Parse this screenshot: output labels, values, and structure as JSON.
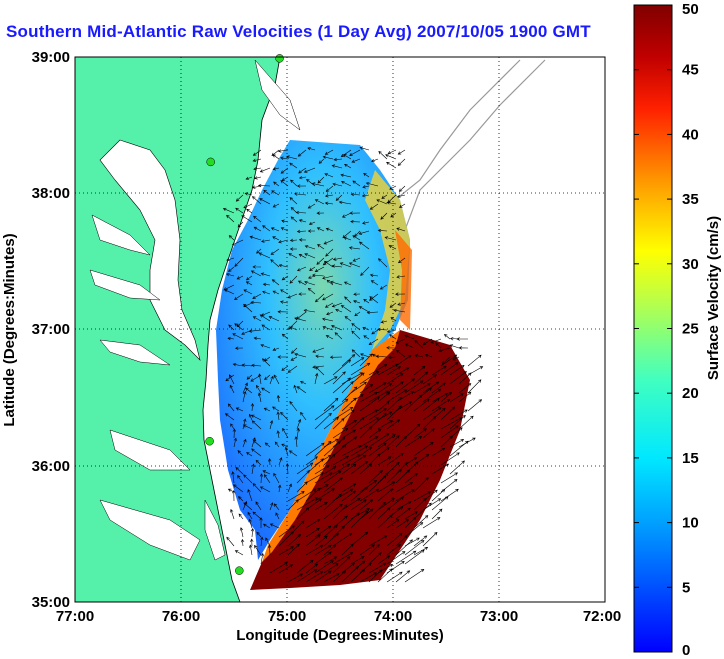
{
  "figure": {
    "title": "Southern Mid-Atlantic Raw Velocities (1 Day Avg) 2007/10/05 1900 GMT",
    "xlabel": "Longitude (Degrees:Minutes)",
    "ylabel": "Latitude (Degrees:Minutes)",
    "x_ticks": [
      "77:00",
      "76:00",
      "75:00",
      "74:00",
      "73:00",
      "72:00"
    ],
    "y_ticks": [
      "39:00",
      "38:00",
      "37:00",
      "36:00",
      "35:00"
    ]
  },
  "colorbar": {
    "label": "Surface Velocity (cm/s)",
    "ticks": [
      "50",
      "45",
      "40",
      "35",
      "30",
      "25",
      "20",
      "15",
      "10",
      "5",
      "0"
    ],
    "min": 0,
    "max": 50
  },
  "colors": {
    "land": "#55f0aa",
    "title": "#1a1aff",
    "station": "#22dd22"
  },
  "map_extent": {
    "lon": [
      -77,
      -72
    ],
    "lat": [
      35,
      39
    ]
  },
  "radar_stations": [
    {
      "lon": -75.07,
      "lat": 38.99
    },
    {
      "lon": -75.72,
      "lat": 38.23
    },
    {
      "lon": -75.73,
      "lat": 36.18
    },
    {
      "lon": -75.45,
      "lat": 35.23
    }
  ]
}
